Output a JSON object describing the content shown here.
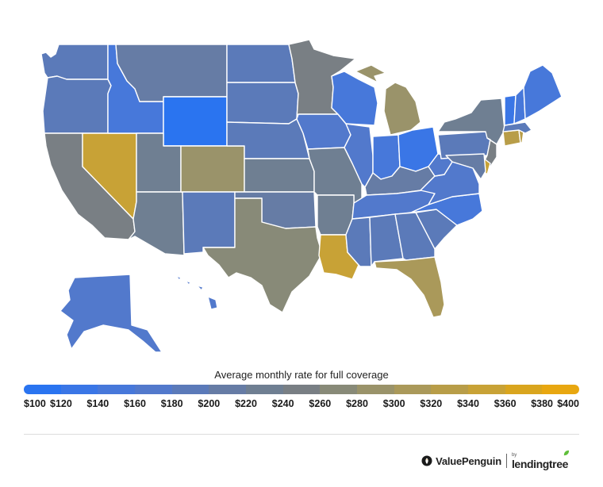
{
  "legend": {
    "title": "Average monthly rate for full coverage",
    "ticks": [
      "$100",
      "$120",
      "$140",
      "$160",
      "$180",
      "$200",
      "$220",
      "$240",
      "$260",
      "$280",
      "$300",
      "$320",
      "$340",
      "$360",
      "$380",
      "$400"
    ]
  },
  "colors": {
    "scale": [
      "#2a74f0",
      "#3a76e6",
      "#4778da",
      "#5279cc",
      "#5b7ab9",
      "#667ca5",
      "#6f7f92",
      "#797f84",
      "#888a78",
      "#9a936a",
      "#aa995a",
      "#b89d48",
      "#c8a236",
      "#d9a51e",
      "#e8a710"
    ],
    "background": "#ffffff",
    "state_border": "#ffffff"
  },
  "brand": {
    "valuepenguin": "ValuePenguin",
    "by": "by",
    "lendingtree": "lendingtree"
  },
  "chart_data": {
    "type": "choropleth",
    "title": "Average monthly rate for full coverage",
    "unit": "USD per month",
    "range": [
      100,
      400
    ],
    "states": [
      {
        "state": "WA",
        "value": 185
      },
      {
        "state": "OR",
        "value": 180
      },
      {
        "state": "CA",
        "value": 245
      },
      {
        "state": "NV",
        "value": 340
      },
      {
        "state": "ID",
        "value": 155
      },
      {
        "state": "MT",
        "value": 210
      },
      {
        "state": "WY",
        "value": 110
      },
      {
        "state": "UT",
        "value": 225
      },
      {
        "state": "AZ",
        "value": 230
      },
      {
        "state": "CO",
        "value": 290
      },
      {
        "state": "NM",
        "value": 195
      },
      {
        "state": "ND",
        "value": 180
      },
      {
        "state": "SD",
        "value": 185
      },
      {
        "state": "NE",
        "value": 190
      },
      {
        "state": "KS",
        "value": 220
      },
      {
        "state": "OK",
        "value": 205
      },
      {
        "state": "TX",
        "value": 265
      },
      {
        "state": "MN",
        "value": 240
      },
      {
        "state": "IA",
        "value": 170
      },
      {
        "state": "MO",
        "value": 225
      },
      {
        "state": "AR",
        "value": 230
      },
      {
        "state": "LA",
        "value": 345
      },
      {
        "state": "WI",
        "value": 155
      },
      {
        "state": "IL",
        "value": 170
      },
      {
        "state": "MI",
        "value": 280
      },
      {
        "state": "IN",
        "value": 155
      },
      {
        "state": "OH",
        "value": 130
      },
      {
        "state": "KY",
        "value": 200
      },
      {
        "state": "TN",
        "value": 175
      },
      {
        "state": "MS",
        "value": 190
      },
      {
        "state": "AL",
        "value": 180
      },
      {
        "state": "GA",
        "value": 190
      },
      {
        "state": "FL",
        "value": 315
      },
      {
        "state": "SC",
        "value": 180
      },
      {
        "state": "NC",
        "value": 145
      },
      {
        "state": "VA",
        "value": 160
      },
      {
        "state": "WV",
        "value": 165
      },
      {
        "state": "PA",
        "value": 195
      },
      {
        "state": "NY",
        "value": 235
      },
      {
        "state": "NJ",
        "value": 250
      },
      {
        "state": "DE",
        "value": 340
      },
      {
        "state": "MD",
        "value": 215
      },
      {
        "state": "CT",
        "value": 320
      },
      {
        "state": "RI",
        "value": 320
      },
      {
        "state": "MA",
        "value": 185
      },
      {
        "state": "VT",
        "value": 125
      },
      {
        "state": "NH",
        "value": 140
      },
      {
        "state": "ME",
        "value": 140
      },
      {
        "state": "AK",
        "value": 175
      },
      {
        "state": "HI",
        "value": 160
      }
    ]
  }
}
